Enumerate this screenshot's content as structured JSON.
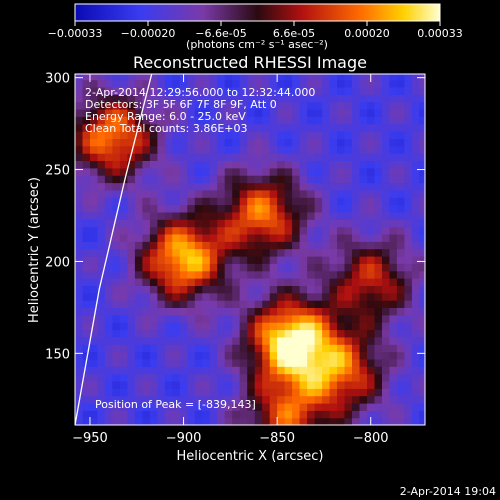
{
  "chart_data": {
    "type": "heatmap",
    "title": "Reconstructed RHESSI Image",
    "xlabel": "Heliocentric X (arcsec)",
    "ylabel": "Heliocentric Y (arcsec)",
    "xlim": [
      -958,
      -771
    ],
    "ylim": [
      111,
      302
    ],
    "xticks": [
      -950,
      -900,
      -850,
      -800
    ],
    "yticks": [
      150,
      200,
      250,
      300
    ],
    "colorbar": {
      "min": -0.00033,
      "max": 0.00033,
      "tick_labels": [
        "-0.00033",
        "-0.00020",
        "-6.6e-05",
        "6.6e-05",
        "0.00020",
        "0.00033"
      ],
      "unit_label": "(photons cm⁻² s⁻¹ asec⁻²)"
    },
    "annotations": {
      "time_range": "2-Apr-2014 12:29:56.000 to 12:32:44.000",
      "detectors": "Detectors: 3F 5F 6F 7F 8F 9F, Att 0",
      "energy": "Energy Range: 6.0 - 25.0 keV",
      "clean": "Clean    Total counts: 3.86E+03",
      "peak": "Position of Peak = [-839,143]"
    },
    "timestamp": "2-Apr-2014 19:04",
    "sources": [
      {
        "x": -843,
        "y": 157,
        "value": 0.00033
      },
      {
        "x": -900,
        "y": 202,
        "value": 0.00026
      },
      {
        "x": -858,
        "y": 226,
        "value": 0.00018
      },
      {
        "x": -938,
        "y": 268,
        "value": 0.0002
      },
      {
        "x": -815,
        "y": 140,
        "value": 0.00014
      },
      {
        "x": -845,
        "y": 115,
        "value": 0.00012
      },
      {
        "x": -800,
        "y": 190,
        "value": 0.0001
      }
    ],
    "limb_arc": [
      [
        -958,
        111
      ],
      [
        -945,
        185
      ],
      [
        -931,
        246
      ],
      [
        -917,
        302
      ]
    ]
  }
}
